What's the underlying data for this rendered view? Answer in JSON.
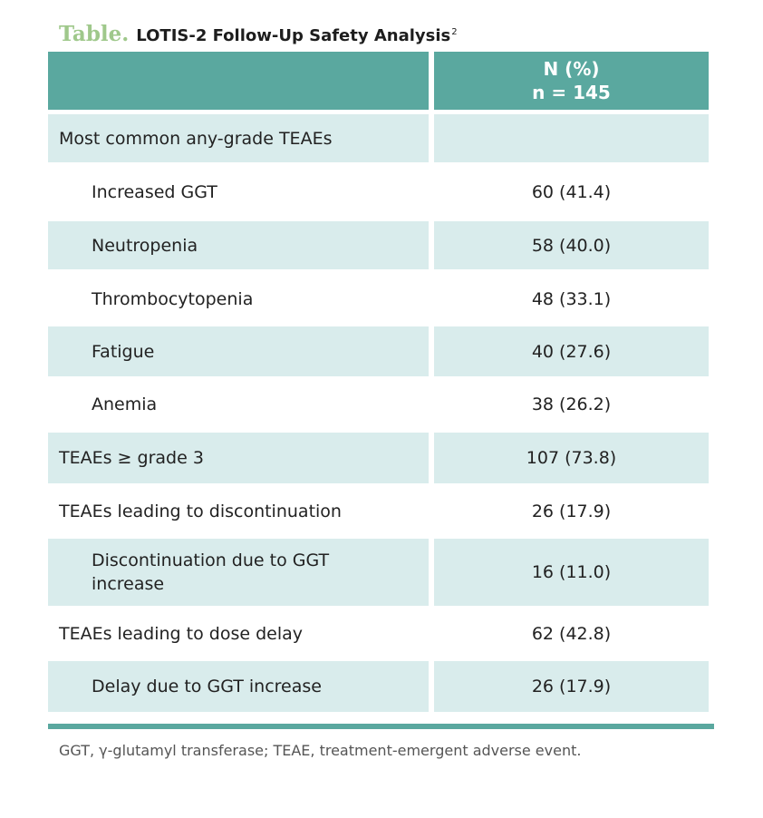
{
  "title": {
    "label": "Table.",
    "text": "LOTIS-2 Follow-Up Safety Analysis",
    "superscript": "2"
  },
  "table": {
    "header": {
      "left": "",
      "right_line1": "N (%)",
      "right_line2": "n = 145"
    },
    "rows": [
      {
        "label": "Most common any-grade TEAEs",
        "value": "",
        "indent": false
      },
      {
        "label": "Increased GGT",
        "value": "60 (41.4)",
        "indent": true
      },
      {
        "label": "Neutropenia",
        "value": "58 (40.0)",
        "indent": true
      },
      {
        "label": "Thrombocytopenia",
        "value": "48 (33.1)",
        "indent": true
      },
      {
        "label": "Fatigue",
        "value": "40 (27.6)",
        "indent": true
      },
      {
        "label": "Anemia",
        "value": "38 (26.2)",
        "indent": true
      },
      {
        "label": "TEAEs ≥ grade 3",
        "value": "107 (73.8)",
        "indent": false
      },
      {
        "label": "TEAEs leading to discontinuation",
        "value": "26 (17.9)",
        "indent": false
      },
      {
        "label": "Discontinuation due to GGT increase",
        "value": "16 (11.0)",
        "indent": true
      },
      {
        "label": "TEAEs leading to dose delay",
        "value": "62 (42.8)",
        "indent": false
      },
      {
        "label": "Delay due to GGT increase",
        "value": "26 (17.9)",
        "indent": true
      }
    ]
  },
  "footnote": "GGT, γ-glutamyl transferase; TEAE, treatment-emergent adverse event.",
  "colors": {
    "header_bg": "#5aa89f",
    "row_shade": "#d9ecec",
    "title_label": "#9fc88b"
  }
}
